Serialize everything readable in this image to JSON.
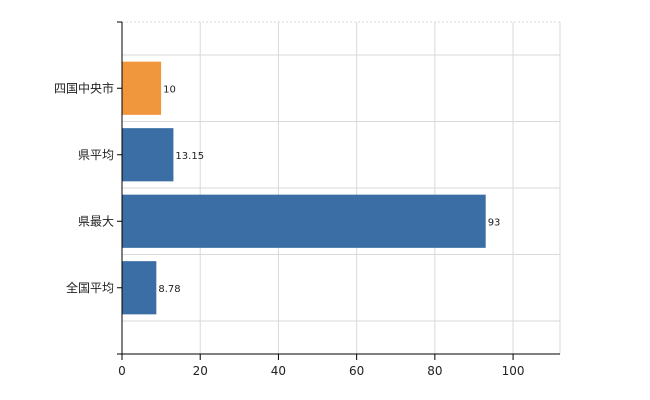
{
  "chart_data": {
    "type": "bar",
    "orientation": "horizontal",
    "categories": [
      "四国中央市",
      "県平均",
      "県最大",
      "全国平均"
    ],
    "values": [
      10,
      13.15,
      93,
      8.78
    ],
    "value_labels": [
      "10",
      "13.15",
      "93",
      "8.78"
    ],
    "bar_colors": [
      "#f0963c",
      "#3a6ea5",
      "#3a6ea5",
      "#3a6ea5"
    ],
    "xlim": [
      0,
      112
    ],
    "x_ticks": [
      0,
      20,
      40,
      60,
      80,
      100
    ],
    "grid": true,
    "title": "",
    "xlabel": "",
    "ylabel": ""
  }
}
